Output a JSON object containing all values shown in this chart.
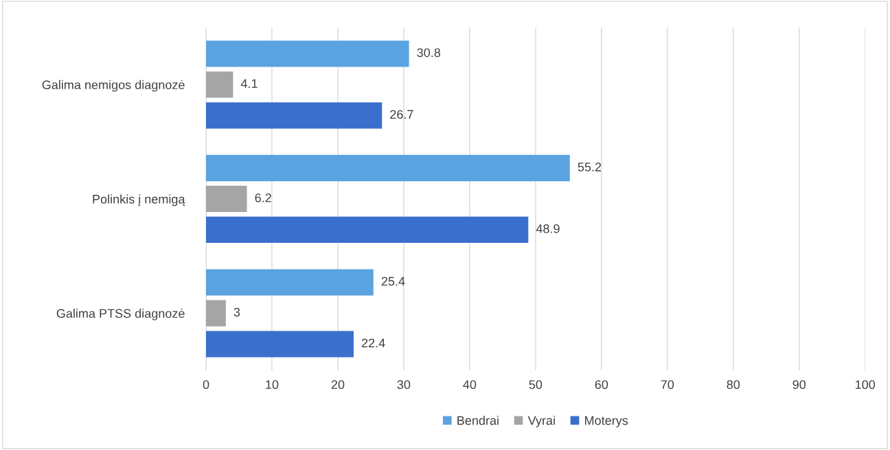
{
  "chart_data": {
    "type": "bar",
    "orientation": "horizontal",
    "categories": [
      "Galima nemigos diagnozė",
      "Polinkis į nemigą",
      "Galima PTSS diagnozė"
    ],
    "series": [
      {
        "name": "Bendrai",
        "color": "#5aa3e0",
        "values": [
          30.8,
          55.2,
          25.4
        ]
      },
      {
        "name": "Vyrai",
        "color": "#a5a5a5",
        "values": [
          4.1,
          6.2,
          3
        ]
      },
      {
        "name": "Moterys",
        "color": "#3a6fcc",
        "values": [
          26.7,
          48.9,
          22.4
        ]
      }
    ],
    "xlim": [
      0,
      100
    ],
    "xticks": [
      0,
      10,
      20,
      30,
      40,
      50,
      60,
      70,
      80,
      90,
      100
    ],
    "grid": "x",
    "legend": "bottom",
    "data_labels": true
  }
}
